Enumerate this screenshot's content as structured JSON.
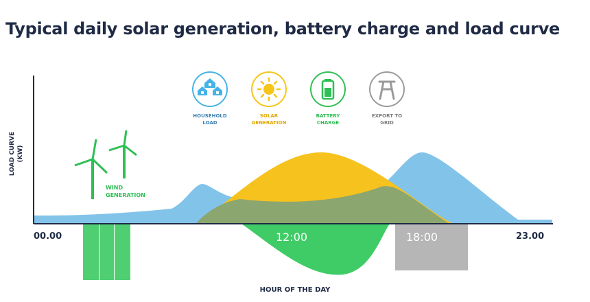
{
  "title": "Typical daily solar generation, battery charge and load curve",
  "axes": {
    "y_label_line1": "LOAD CURVE",
    "y_label_line2": "(KW)",
    "x_label": "HOUR OF THE DAY",
    "ticks": {
      "start": "00.00",
      "noon": "12:00",
      "evening": "18:00",
      "end": "23.00"
    }
  },
  "legend": {
    "household": {
      "line1": "HOUSEHOLD",
      "line2": "LOAD",
      "icon": "houses-icon",
      "color": "#45b3e7"
    },
    "solar": {
      "line1": "SOLAR",
      "line2": "GENERATION",
      "icon": "sun-icon",
      "color": "#f5c518"
    },
    "battery": {
      "line1": "BATTERY",
      "line2": "CHARGE",
      "icon": "battery-icon",
      "color": "#2fbf55"
    },
    "export": {
      "line1": "EXPORT TO",
      "line2": "GRID",
      "icon": "pylon-icon",
      "color": "#9a9a9a"
    }
  },
  "wind": {
    "line1": "WIND",
    "line2": "GENERATION",
    "icon": "wind-turbine-icon",
    "color": "#2fbf55"
  },
  "colors": {
    "load": "#6cb8e6",
    "solar": "#f6c21e",
    "overlap": "#8ca66f",
    "battery": "#3fcc66",
    "wind_bars": "#4fcf72",
    "grid_bar": "#b6b6b6",
    "axis": "#1f2a44"
  }
}
